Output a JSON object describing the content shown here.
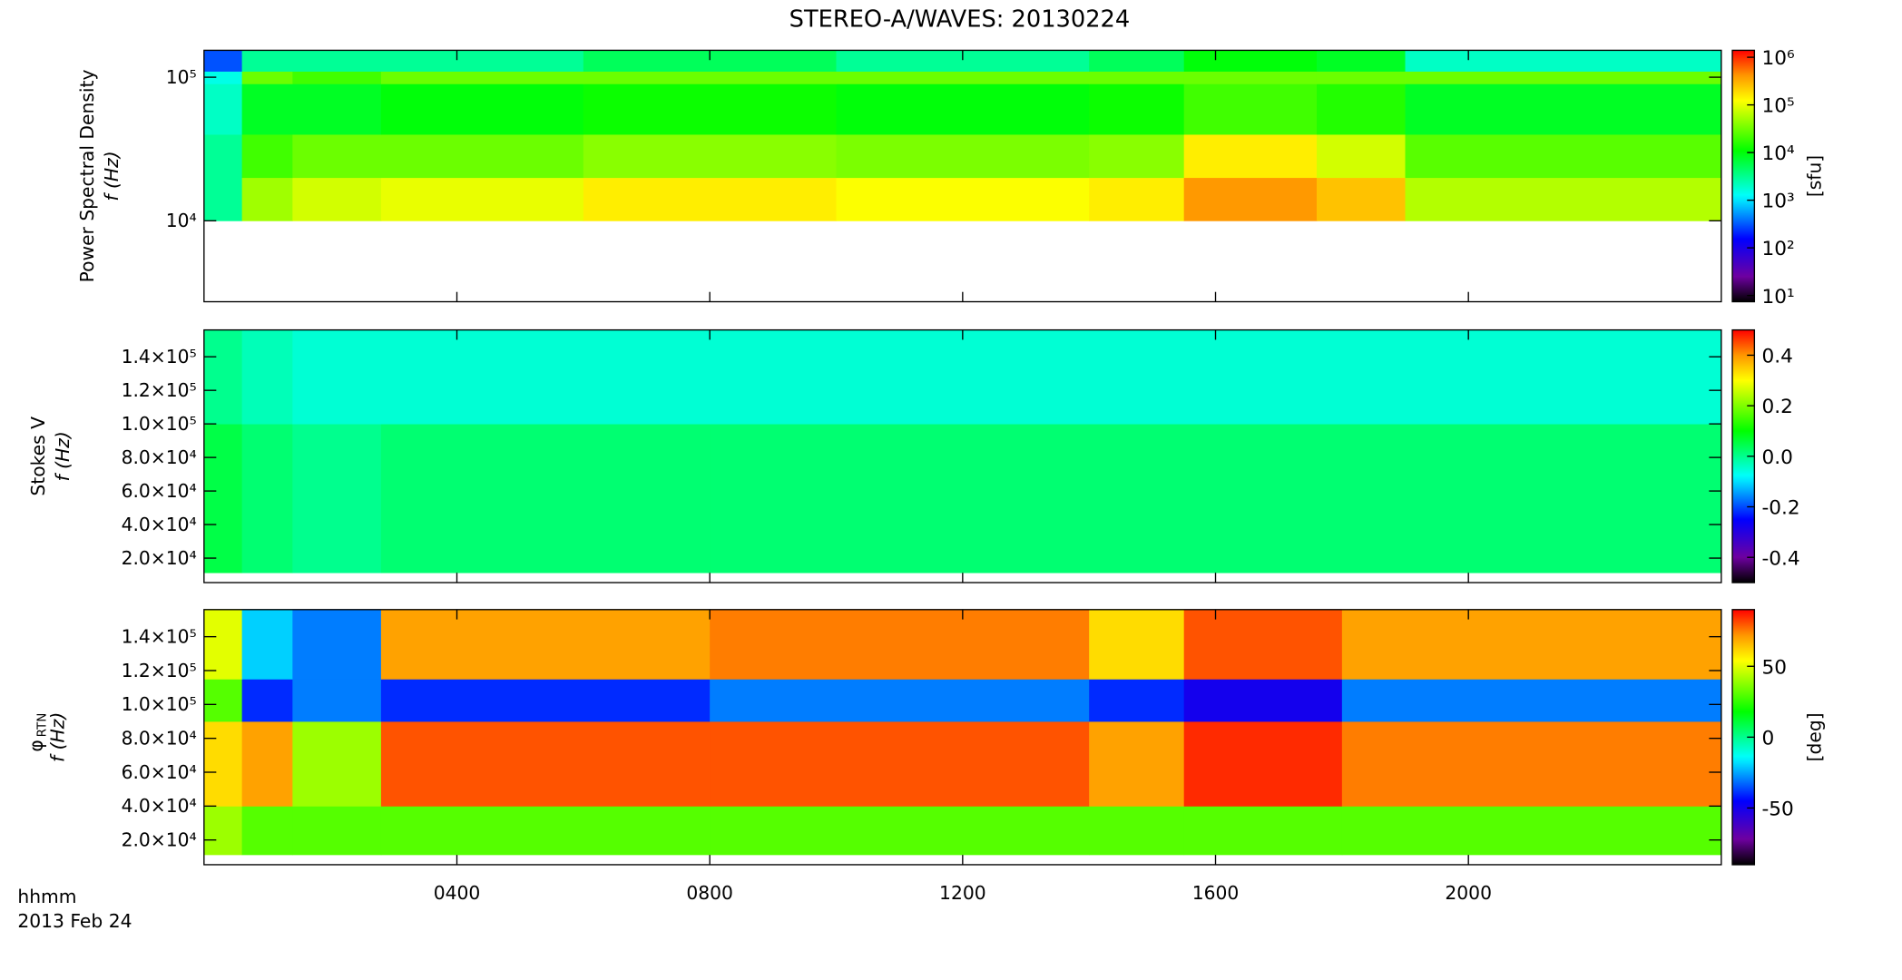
{
  "title": "STEREO-A/WAVES: 20130224",
  "x_axis": {
    "label": "hhmm",
    "date": "2013 Feb 24",
    "xlim": [
      0,
      24
    ],
    "xticks": [
      {
        "value": 4,
        "label": "0400"
      },
      {
        "value": 8,
        "label": "0800"
      },
      {
        "value": 12,
        "label": "1200"
      },
      {
        "value": 16,
        "label": "1600"
      },
      {
        "value": 20,
        "label": "2000"
      }
    ]
  },
  "chart_data": [
    {
      "type": "heatmap",
      "ylabel": "Power Spectral Density",
      "ylabel2": "f (Hz)",
      "ylog": true,
      "ylim": [
        2730,
        154000
      ],
      "yticks": [
        {
          "value": 10000,
          "label": "10⁴"
        },
        {
          "value": 100000,
          "label": "10⁵"
        }
      ],
      "x_edges": [
        0,
        0.6,
        1.4,
        2.8,
        6,
        10,
        14,
        15.5,
        17.6,
        19,
        24
      ],
      "y_edges": [
        10000,
        20000,
        40000,
        90000,
        110000,
        154000
      ],
      "z": [
        [
          3000,
          50000,
          80000,
          100000,
          150000,
          120000,
          150000,
          400000,
          250000,
          60000
        ],
        [
          3000,
          20000,
          30000,
          30000,
          40000,
          35000,
          40000,
          150000,
          80000,
          25000
        ],
        [
          2000,
          8000,
          8000,
          10000,
          12000,
          10000,
          12000,
          20000,
          15000,
          8000
        ],
        [
          1500,
          30000,
          20000,
          30000,
          30000,
          30000,
          30000,
          30000,
          30000,
          30000
        ],
        [
          300,
          3000,
          3000,
          3000,
          5000,
          3000,
          5000,
          10000,
          8000,
          2000
        ]
      ],
      "colormap": "rainbow",
      "colorbar": {
        "label": "[sfu]",
        "log": true,
        "clim": [
          7.4,
          1400000
        ],
        "ticks": [
          {
            "value": 10,
            "label": "10¹"
          },
          {
            "value": 100,
            "label": "10²"
          },
          {
            "value": 1000,
            "label": "10³"
          },
          {
            "value": 10000,
            "label": "10⁴"
          },
          {
            "value": 100000,
            "label": "10⁵"
          },
          {
            "value": 1000000,
            "label": "10⁶"
          }
        ]
      }
    },
    {
      "type": "heatmap",
      "ylabel": "Stokes V",
      "ylabel2": "f (Hz)",
      "ylog": false,
      "ylim": [
        5400,
        156000
      ],
      "yticks": [
        {
          "value": 20000,
          "label": "2.0×10⁴"
        },
        {
          "value": 40000,
          "label": "4.0×10⁴"
        },
        {
          "value": 60000,
          "label": "6.0×10⁴"
        },
        {
          "value": 80000,
          "label": "8.0×10⁴"
        },
        {
          "value": 100000,
          "label": "1.0×10⁵"
        },
        {
          "value": 120000,
          "label": "1.2×10⁵"
        },
        {
          "value": 140000,
          "label": "1.4×10⁵"
        }
      ],
      "x_edges": [
        0,
        0.6,
        1.4,
        2.8,
        8,
        16,
        24
      ],
      "y_edges": [
        11300,
        100000,
        156000
      ],
      "z": [
        [
          0.05,
          0.02,
          0.0,
          0.02,
          0.02,
          0.02
        ],
        [
          0.0,
          -0.03,
          -0.05,
          -0.05,
          -0.05,
          -0.05
        ]
      ],
      "colormap": "rainbow",
      "colorbar": {
        "log": false,
        "clim": [
          -0.5,
          0.5
        ],
        "ticks": [
          -0.4,
          -0.2,
          {
            "value": 0,
            "label": "0.0"
          },
          0.2,
          0.4
        ]
      }
    },
    {
      "type": "heatmap",
      "ylabel": "φ",
      "ylabel_subscript": "RTN",
      "ylabel2": "f (Hz)",
      "ylog": false,
      "ylim": [
        5400,
        156000
      ],
      "yticks": [
        {
          "value": 20000,
          "label": "2.0×10⁴"
        },
        {
          "value": 40000,
          "label": "4.0×10⁴"
        },
        {
          "value": 60000,
          "label": "6.0×10⁴"
        },
        {
          "value": 80000,
          "label": "8.0×10⁴"
        },
        {
          "value": 100000,
          "label": "1.0×10⁵"
        },
        {
          "value": 120000,
          "label": "1.2×10⁵"
        },
        {
          "value": 140000,
          "label": "1.4×10⁵"
        }
      ],
      "x_edges": [
        0,
        0.6,
        1.4,
        2.8,
        8,
        14,
        15.5,
        18,
        24
      ],
      "y_edges": [
        11300,
        40000,
        90000,
        115000,
        156000
      ],
      "z": [
        [
          40,
          30,
          30,
          30,
          30,
          30,
          30,
          30
        ],
        [
          60,
          70,
          40,
          80,
          80,
          70,
          85,
          75
        ],
        [
          30,
          -40,
          -30,
          -40,
          -30,
          -40,
          -50,
          -30
        ],
        [
          50,
          -20,
          -30,
          70,
          75,
          60,
          80,
          70
        ]
      ],
      "colormap": "rainbow",
      "colorbar": {
        "label": "[deg]",
        "log": false,
        "clim": [
          -90,
          90
        ],
        "ticks": [
          -50,
          0,
          50
        ]
      }
    }
  ]
}
